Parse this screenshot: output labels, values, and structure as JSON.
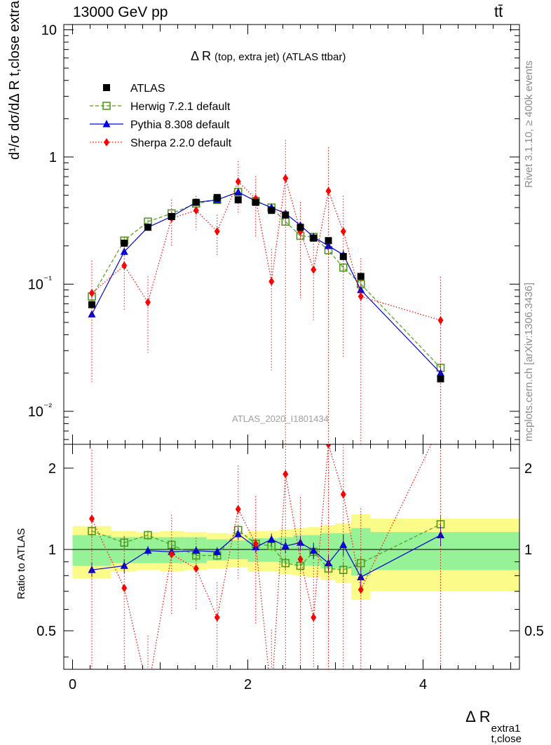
{
  "header": {
    "energy_label": "13000 GeV pp",
    "process_label": "tt̄",
    "title_main": "Δ R",
    "title_sub": "(top, extra jet) (ATLAS ttbar)",
    "watermark": "ATLAS_2020_I1801434",
    "side_rivet": "Rivet 3.1.10, ≥ 400k events",
    "side_mcplots": "mcplots.cern.ch [arXiv:1306.3436]"
  },
  "axes": {
    "ylabel_main": "d¹/σ dσ/dΔ R t,close extra1",
    "ylabel_ratio": "Ratio to ATLAS",
    "xlabel_main": "Δ R",
    "xlabel_super": "extra1",
    "xlabel_sub": "t,close"
  },
  "chart_data": {
    "type": "line",
    "xlim": [
      -0.1,
      5.1
    ],
    "x_ticks": [
      "0",
      "2",
      "4"
    ],
    "main": {
      "yscale": "log",
      "ylim": [
        0.0055,
        11
      ],
      "y_ticks": [
        "10⁻²",
        "10⁻¹",
        "1",
        "10"
      ]
    },
    "ratio": {
      "ylim": [
        0.36,
        2.45
      ],
      "y_ticks": [
        "0.5",
        "1",
        "2"
      ]
    },
    "legend_position": "top-left",
    "x": [
      0.22,
      0.59,
      0.86,
      1.13,
      1.41,
      1.65,
      1.89,
      2.09,
      2.27,
      2.43,
      2.6,
      2.75,
      2.92,
      3.09,
      3.29,
      4.2
    ],
    "bin_edges": [
      0.0,
      0.44,
      0.73,
      1.0,
      1.27,
      1.53,
      1.77,
      2.0,
      2.18,
      2.35,
      2.52,
      2.67,
      2.83,
      3.0,
      3.18,
      3.4,
      5.1
    ],
    "band_inner": [
      0.13,
      0.11,
      0.11,
      0.11,
      0.11,
      0.09,
      0.08,
      0.1,
      0.1,
      0.11,
      0.13,
      0.13,
      0.15,
      0.15,
      0.2,
      0.16
    ],
    "band_outer": [
      0.22,
      0.17,
      0.16,
      0.17,
      0.16,
      0.15,
      0.14,
      0.17,
      0.17,
      0.19,
      0.2,
      0.21,
      0.23,
      0.25,
      0.35,
      0.3
    ],
    "series": [
      {
        "name": "ATLAS",
        "color": "#000000",
        "marker": "square-filled",
        "values": [
          0.069,
          0.21,
          0.28,
          0.34,
          0.44,
          0.48,
          0.46,
          0.44,
          0.38,
          0.35,
          0.28,
          0.23,
          0.22,
          0.165,
          0.115,
          0.018
        ],
        "ratio": [
          1,
          1,
          1,
          1,
          1,
          1,
          1,
          1,
          1,
          1,
          1,
          1,
          1,
          1,
          1,
          1
        ]
      },
      {
        "name": "Herwig 7.2.1 default",
        "color": "#4f9a1d",
        "marker": "square-open",
        "dash": "5,3",
        "values": [
          0.08,
          0.22,
          0.31,
          0.36,
          0.43,
          0.46,
          0.53,
          0.45,
          0.4,
          0.31,
          0.24,
          0.235,
          0.185,
          0.135,
          0.1,
          0.022
        ],
        "ratio": [
          1.17,
          1.06,
          1.13,
          1.04,
          0.95,
          0.95,
          1.18,
          1.05,
          1.03,
          0.89,
          0.87,
          0.98,
          0.85,
          0.84,
          0.89,
          1.24
        ],
        "ratio_err": [
          0.05,
          0.06,
          0.04,
          0.04,
          0.04,
          0.04,
          0.04,
          0.04,
          0.04,
          0.05,
          0.05,
          0.06,
          0.05,
          0.06,
          0.06,
          0.08
        ]
      },
      {
        "name": "Pythia 8.308 default",
        "color": "#0000dd",
        "marker": "triangle",
        "values": [
          0.058,
          0.18,
          0.28,
          0.34,
          0.44,
          0.46,
          0.53,
          0.45,
          0.4,
          0.36,
          0.29,
          0.235,
          0.2,
          0.17,
          0.09,
          0.02
        ],
        "ratio": [
          0.84,
          0.87,
          0.99,
          0.98,
          0.99,
          0.98,
          1.14,
          1.02,
          1.09,
          1.03,
          1.06,
          0.99,
          0.89,
          1.04,
          0.79,
          1.13
        ],
        "ratio_err": [
          0.06,
          0.06,
          0.04,
          0.04,
          0.04,
          0.04,
          0.05,
          0.05,
          0.05,
          0.06,
          0.06,
          0.07,
          0.07,
          0.09,
          0.09,
          0.09
        ]
      },
      {
        "name": "Sherpa 2.2.0 default",
        "color": "#ff0000",
        "marker": "diamond",
        "dash": "1.5,2.5",
        "values": [
          0.085,
          0.14,
          0.072,
          0.33,
          0.38,
          0.26,
          0.64,
          0.47,
          0.105,
          0.68,
          0.26,
          0.13,
          0.54,
          0.26,
          0.08,
          0.052
        ],
        "ratio": [
          1.3,
          0.72,
          0.3,
          0.96,
          0.85,
          0.56,
          1.41,
          1.05,
          0.28,
          1.9,
          0.92,
          0.56,
          2.45,
          1.6,
          0.71,
          2.89
        ],
        "ratio_err": [
          0.8,
          0.55,
          0.6,
          0.4,
          0.3,
          0.35,
          0.45,
          0.5,
          0.8,
          1.0,
          0.7,
          0.6,
          1.2,
          0.9,
          1.0,
          1.2
        ]
      }
    ]
  }
}
